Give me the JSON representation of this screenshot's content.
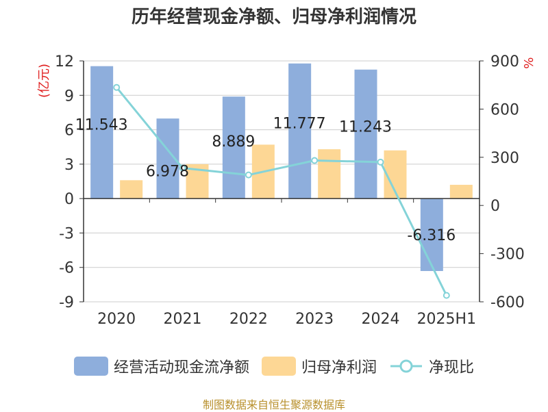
{
  "chart_data": {
    "type": "bar",
    "title": "历年经营现金净额、归母净利润情况",
    "categories": [
      "2020",
      "2021",
      "2022",
      "2023",
      "2024",
      "2025H1"
    ],
    "left_axis": {
      "unit": "(亿元)",
      "ylim": [
        -9,
        12
      ],
      "ticks": [
        12,
        9,
        6,
        3,
        0,
        -3,
        -6,
        -9
      ]
    },
    "right_axis": {
      "unit": "%",
      "ylim": [
        -600,
        900
      ],
      "ticks": [
        900,
        600,
        300,
        0,
        -300,
        -600
      ]
    },
    "series": [
      {
        "name": "经营活动现金流净额",
        "type": "bar",
        "axis": "left",
        "color": "#8eaedc",
        "values": [
          11.543,
          6.978,
          8.889,
          11.777,
          11.243,
          -6.316
        ],
        "labels": [
          "11.543",
          "6.978",
          "8.889",
          "11.777",
          "11.243",
          "-6.316"
        ]
      },
      {
        "name": "归母净利润",
        "type": "bar",
        "axis": "left",
        "color": "#fdd795",
        "values": [
          1.6,
          3.0,
          4.7,
          4.3,
          4.2,
          1.2
        ]
      },
      {
        "name": "净现比",
        "type": "line",
        "axis": "right",
        "color": "#84d3d8",
        "values": [
          735,
          233,
          190,
          280,
          270,
          -560
        ]
      }
    ],
    "grid": true,
    "legend_position": "bottom"
  },
  "source": "制图数据来自恒生聚源数据库"
}
